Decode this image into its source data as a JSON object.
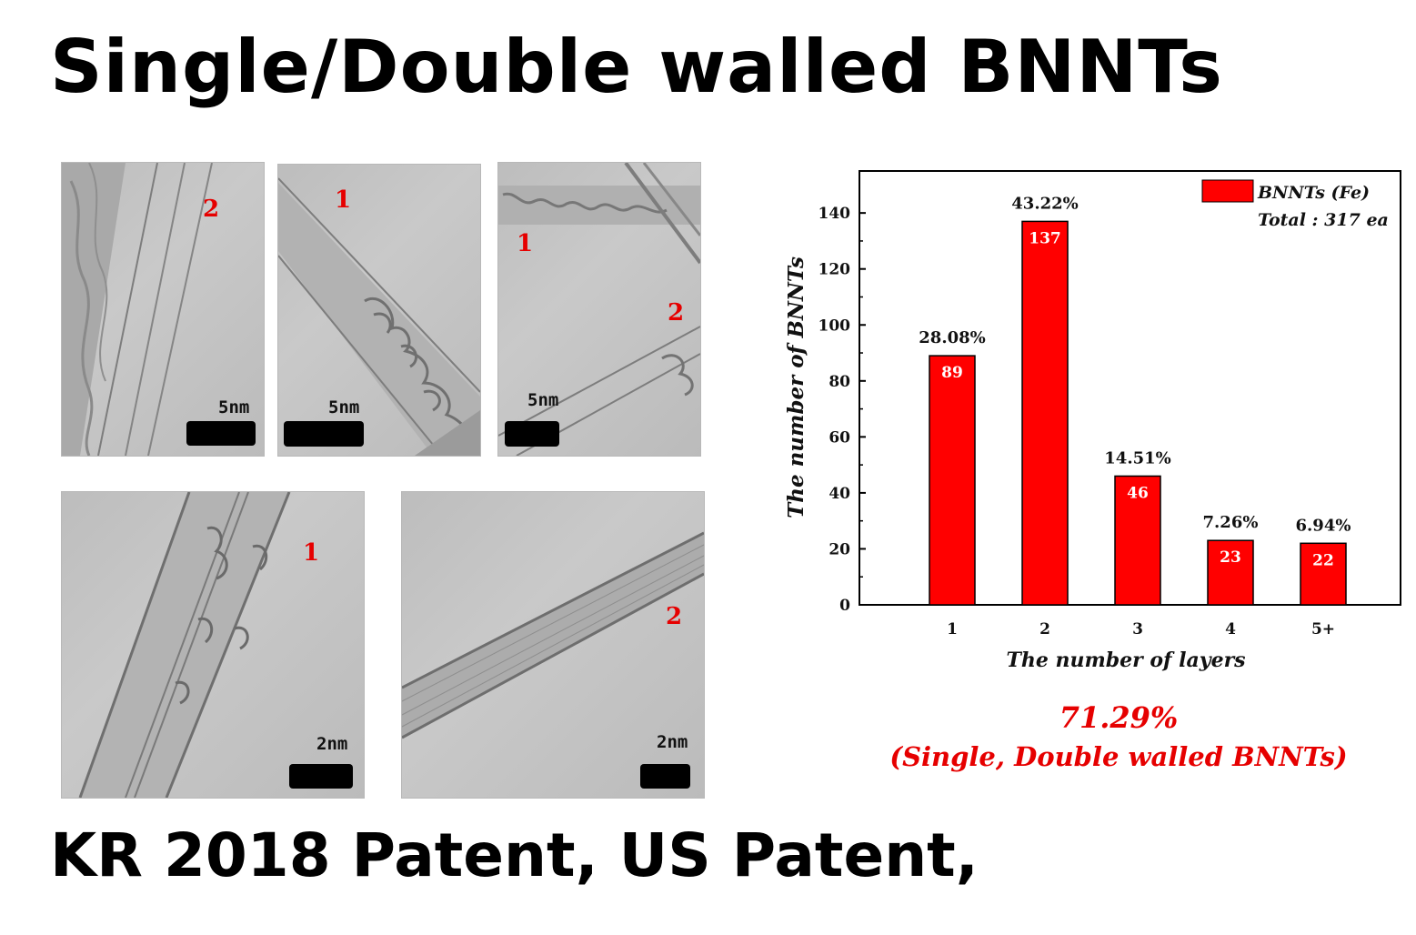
{
  "title": "Single/Double walled BNNTs",
  "footer": "KR 2018 Patent, US Patent,",
  "tem_images": [
    {
      "label": "2",
      "scale": "5nm"
    },
    {
      "label": "1",
      "scale": "5nm"
    },
    {
      "labels": [
        "1",
        "2"
      ],
      "scale": "5nm"
    },
    {
      "label": "1",
      "scale": "2nm"
    },
    {
      "label": "2",
      "scale": "2nm"
    }
  ],
  "summary": {
    "percent": "71.29%",
    "caption": "(Single, Double walled BNNTs)",
    "color": "#e60000"
  },
  "chart_data": {
    "type": "bar",
    "categories": [
      "1",
      "2",
      "3",
      "4",
      "5+"
    ],
    "series": [
      {
        "name": "BNNTs (Fe)",
        "values": [
          89,
          137,
          46,
          23,
          22
        ],
        "percent_labels": [
          "28.08%",
          "43.22%",
          "14.51%",
          "7.26%",
          "6.94%"
        ],
        "color": "#ff0000"
      }
    ],
    "legend_note": "Total : 317 ea",
    "legend_position": "top-right",
    "xlabel": "The number of layers",
    "ylabel": "The number of BNNTs",
    "ylim": [
      0,
      155
    ],
    "yticks": [
      0,
      20,
      40,
      60,
      80,
      100,
      120,
      140
    ],
    "grid": false
  }
}
